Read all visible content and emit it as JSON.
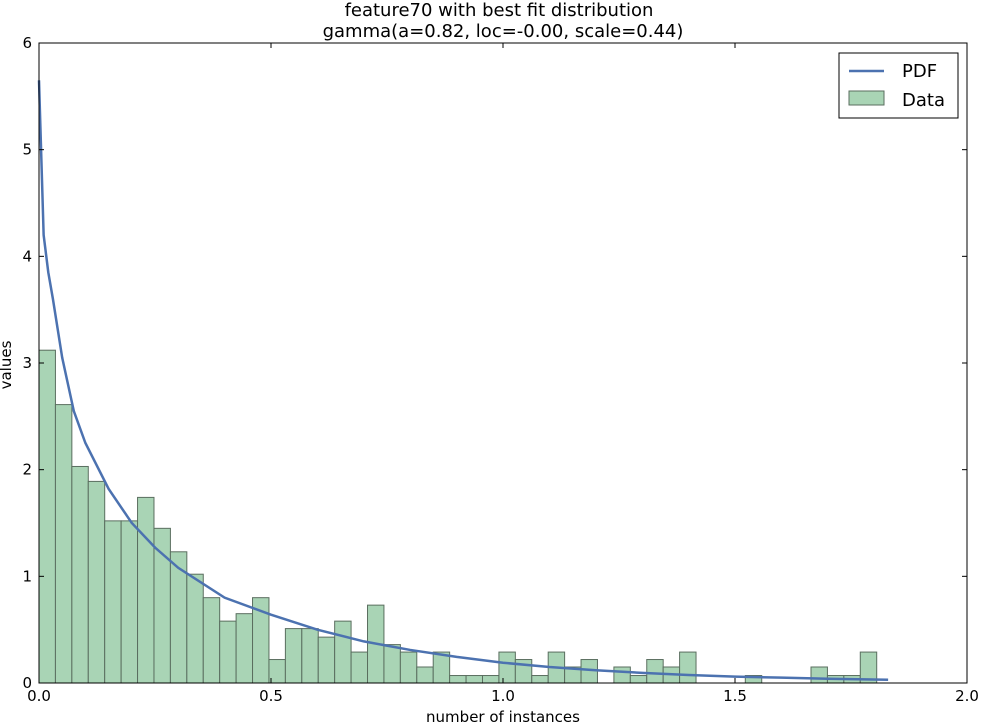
{
  "chart_data": {
    "type": "bar",
    "title": "feature70 with best fit distribution",
    "subtitle": "gamma(a=0.82, loc=-0.00, scale=0.44)",
    "xlabel": "number of instances",
    "ylabel": "values",
    "xlim": [
      0.0,
      2.0
    ],
    "ylim": [
      0,
      6
    ],
    "x_ticks": [
      "0.0",
      "0.5",
      "1.0",
      "1.5",
      "2.0"
    ],
    "y_ticks": [
      "0",
      "1",
      "2",
      "3",
      "4",
      "5",
      "6"
    ],
    "grid": false,
    "legend_position": "top-right",
    "legend": [
      {
        "label": "PDF",
        "kind": "line",
        "color": "#4c72b0"
      },
      {
        "label": "Data",
        "kind": "patch",
        "color": "#a9d4b5"
      }
    ],
    "histogram": {
      "name": "Data",
      "bin_width": 0.0354,
      "bin_start": 0.0,
      "fill_color": "#a9d4b5",
      "edge_color": "#5a6e5f",
      "values": [
        3.12,
        2.61,
        2.03,
        1.89,
        1.52,
        1.52,
        1.74,
        1.45,
        1.23,
        1.02,
        0.8,
        0.58,
        0.65,
        0.8,
        0.22,
        0.51,
        0.51,
        0.43,
        0.58,
        0.29,
        0.73,
        0.36,
        0.29,
        0.15,
        0.29,
        0.07,
        0.07,
        0.07,
        0.29,
        0.22,
        0.07,
        0.29,
        0.15,
        0.22,
        0.0,
        0.15,
        0.07,
        0.22,
        0.15,
        0.29,
        0.0,
        0.0,
        0.0,
        0.07,
        0.0,
        0.0,
        0.0,
        0.15,
        0.07,
        0.07,
        0.29
      ]
    },
    "pdf": {
      "name": "PDF",
      "color": "#4c72b0",
      "x": [
        0.0,
        0.01,
        0.02,
        0.03,
        0.05,
        0.075,
        0.1,
        0.15,
        0.2,
        0.25,
        0.3,
        0.4,
        0.5,
        0.6,
        0.7,
        0.8,
        0.9,
        1.0,
        1.1,
        1.2,
        1.3,
        1.4,
        1.5,
        1.6,
        1.7,
        1.83
      ],
      "y": [
        5.65,
        4.2,
        3.85,
        3.6,
        3.05,
        2.55,
        2.25,
        1.82,
        1.5,
        1.27,
        1.08,
        0.8,
        0.64,
        0.5,
        0.39,
        0.31,
        0.245,
        0.19,
        0.15,
        0.12,
        0.095,
        0.075,
        0.06,
        0.05,
        0.04,
        0.03
      ]
    }
  }
}
